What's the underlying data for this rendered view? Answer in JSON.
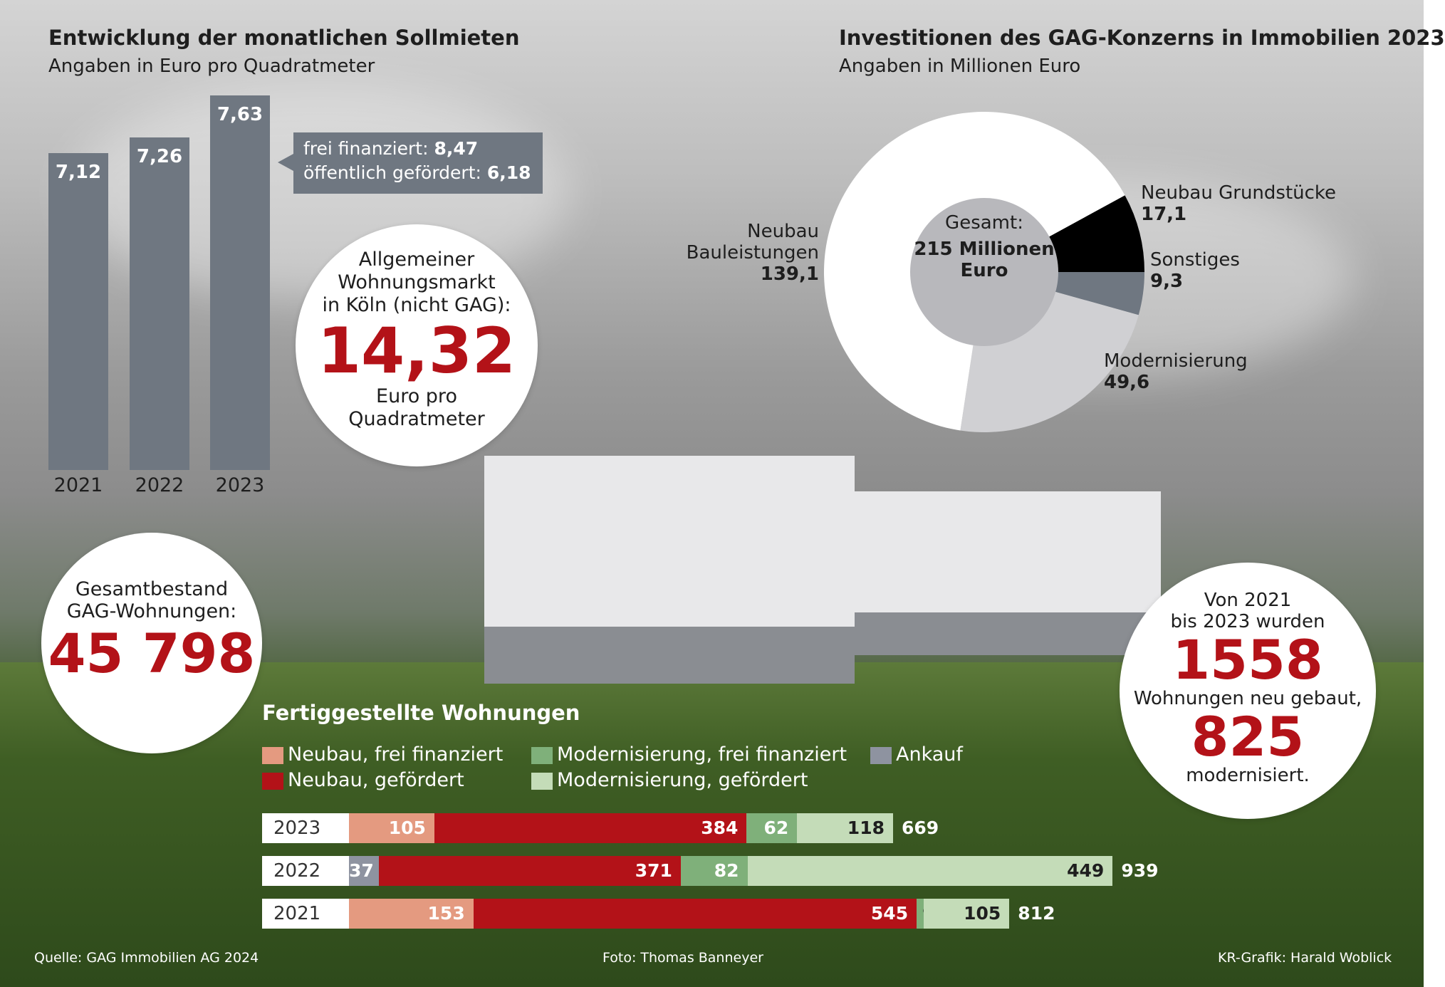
{
  "left_chart": {
    "title": "Entwicklung der monatlichen Sollmieten",
    "subtitle": "Angaben in Euro pro Quadratmeter",
    "callout_line1_label": "frei finanziert: ",
    "callout_line1_value": "8,47",
    "callout_line2_label": "öffentlich gefördert: ",
    "callout_line2_value": "6,18"
  },
  "market_circle": {
    "line1": "Allgemeiner",
    "line2": "Wohnungsmarkt",
    "line3": "in Köln (nicht GAG):",
    "value": "14,32",
    "unit1": "Euro pro",
    "unit2": "Quadratmeter"
  },
  "stock_circle": {
    "line1": "Gesamtbestand",
    "line2": "GAG-Wohnungen:",
    "value": "45 798"
  },
  "built_circle": {
    "line1": "Von 2021",
    "line2": "bis 2023 wurden",
    "value1": "1558",
    "line3": "Wohnungen neu gebaut,",
    "value2": "825",
    "line4": "modernisiert."
  },
  "pie_chart": {
    "title": "Investitionen des GAG-Konzerns in Immobilien 2023",
    "subtitle": "Angaben in Millionen Euro",
    "center_line1": "Gesamt:",
    "center_line2": "215 Millionen",
    "center_line3": "Euro"
  },
  "bars_section": {
    "title": "Fertiggestellte Wohnungen"
  },
  "footer": {
    "source": "Quelle: GAG Immobilien AG 2024",
    "photo": "Foto: Thomas Banneyer",
    "graphic": "KR-Grafik: Harald Woblick"
  },
  "colors": {
    "red": "#b31218",
    "bar_grey": "#6f7781",
    "neubau_frei": "#e49a80",
    "neubau_gefoerdert": "#b31218",
    "mod_frei": "#7fb07a",
    "mod_gefoerdert": "#c4dcb8",
    "ankauf": "#8e93a0",
    "pie_neubau_bau": "#ffffff",
    "pie_grund": "#000000",
    "pie_sonstiges": "#6f7781",
    "pie_mod": "#d0d0d3"
  },
  "chart_data": [
    {
      "type": "bar",
      "categories": [
        "2021",
        "2022",
        "2023"
      ],
      "values": [
        7.12,
        7.26,
        7.63
      ],
      "labels": [
        "7,12",
        "7,26",
        "7,63"
      ],
      "ylim": [
        0,
        7.63
      ]
    },
    {
      "type": "pie",
      "categories": [
        "Neubau Grundstücke",
        "Sonstiges",
        "Modernisierung",
        "Neubau Bauleistungen"
      ],
      "category_labels": [
        [
          "Neubau Grundstücke"
        ],
        [
          "Sonstiges"
        ],
        [
          "Modernisierung"
        ],
        [
          "Neubau",
          "Bauleistungen"
        ]
      ],
      "values": [
        17.1,
        9.3,
        49.6,
        139.1
      ],
      "labels": [
        "17,1",
        "9,3",
        "49,6",
        "139,1"
      ]
    },
    {
      "type": "bar",
      "orientation": "horizontal-stacked",
      "legend": [
        "Neubau, frei finanziert",
        "Neubau, gefördert",
        "Modernisierung, frei finanziert",
        "Modernisierung, gefördert",
        "Ankauf"
      ],
      "rows": [
        {
          "year": "2023",
          "total": 669,
          "total_label": "669",
          "segments": [
            {
              "series": "Neubau, frei finanziert",
              "value": 105
            },
            {
              "series": "Neubau, gefördert",
              "value": 384
            },
            {
              "series": "Modernisierung, frei finanziert",
              "value": 62
            },
            {
              "series": "Modernisierung, gefördert",
              "value": 118
            }
          ]
        },
        {
          "year": "2022",
          "total": 939,
          "total_label": "939",
          "segments": [
            {
              "series": "Ankauf",
              "value": 37
            },
            {
              "series": "Neubau, gefördert",
              "value": 371
            },
            {
              "series": "Modernisierung, frei finanziert",
              "value": 82
            },
            {
              "series": "Modernisierung, gefördert",
              "value": 449
            }
          ]
        },
        {
          "year": "2021",
          "total": 812,
          "total_label": "812",
          "segments": [
            {
              "series": "Neubau, frei finanziert",
              "value": 153
            },
            {
              "series": "Neubau, gefördert",
              "value": 545
            },
            {
              "series": "Modernisierung, frei finanziert",
              "value": 9
            },
            {
              "series": "Modernisierung, gefördert",
              "value": 105
            }
          ]
        }
      ]
    }
  ]
}
